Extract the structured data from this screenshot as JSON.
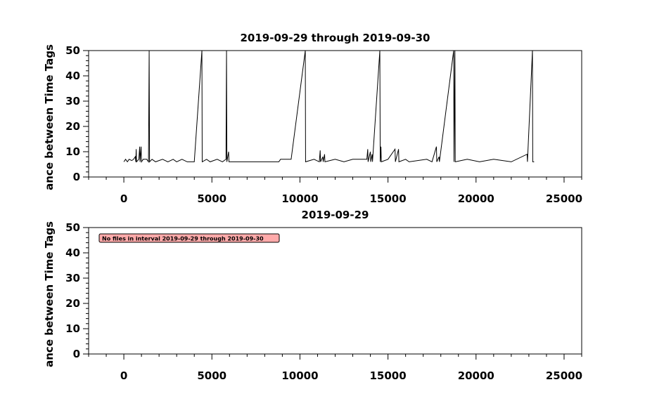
{
  "chart_data": [
    {
      "type": "line",
      "title": "2019-09-29 through 2019-09-30",
      "ylabel": "ance between Time Tags",
      "xlim": [
        -2000,
        26000
      ],
      "ylim": [
        0,
        50
      ],
      "xticks": [
        0,
        5000,
        10000,
        15000,
        20000,
        25000
      ],
      "yticks": [
        0,
        10,
        20,
        30,
        40,
        50
      ],
      "xminorticks": [
        -2000,
        -1000,
        1000,
        2000,
        3000,
        4000,
        6000,
        7000,
        8000,
        9000,
        11000,
        12000,
        13000,
        14000,
        16000,
        17000,
        18000,
        19000,
        21000,
        22000,
        23000,
        24000,
        26000
      ],
      "yminorticks": [
        2,
        4,
        6,
        8,
        12,
        14,
        16,
        18,
        22,
        24,
        26,
        28,
        32,
        34,
        36,
        38,
        42,
        44,
        46,
        48
      ],
      "color": "#000000",
      "x": [
        0,
        100,
        200,
        300,
        450,
        550,
        650,
        680,
        700,
        720,
        850,
        900,
        920,
        980,
        1000,
        1100,
        1300,
        1400,
        1438,
        1460,
        1600,
        1800,
        2200,
        2500,
        2800,
        3000,
        3300,
        3600,
        4000,
        4433,
        4450,
        4700,
        4900,
        5300,
        5600,
        5800,
        5831,
        5850,
        5950,
        5970,
        6500,
        7500,
        8800,
        8900,
        9500,
        10304,
        10320,
        10800,
        11100,
        11150,
        11170,
        11300,
        11320,
        11400,
        11420,
        12000,
        12500,
        13000,
        13800,
        13850,
        13870,
        14000,
        14020,
        14100,
        14120,
        14537,
        14560,
        14600,
        14620,
        15000,
        15400,
        15420,
        15600,
        15620,
        16000,
        16200,
        17200,
        17500,
        17750,
        17770,
        17900,
        17920,
        18730,
        18750,
        18800,
        18820,
        19500,
        20200,
        21000,
        22000,
        22900,
        22920,
        23203,
        23220,
        23300
      ],
      "values": [
        6,
        7,
        6,
        7,
        6.5,
        7,
        8,
        6,
        11,
        6,
        7,
        12,
        6,
        12,
        6,
        7,
        7,
        6,
        50,
        6,
        7,
        6,
        7,
        6,
        7,
        6,
        7,
        6,
        6,
        50,
        6,
        7,
        6,
        7,
        6,
        7,
        50,
        6,
        10,
        6,
        6,
        6,
        6,
        7,
        7,
        50,
        6,
        7,
        6,
        10.5,
        6,
        8,
        6,
        9,
        6,
        7,
        6,
        7,
        7,
        11,
        6,
        10,
        6,
        9,
        6,
        50,
        6,
        12,
        6,
        7,
        11,
        6,
        11,
        6,
        7,
        6,
        7,
        6,
        12,
        6,
        8,
        6,
        50,
        6,
        50,
        6,
        7,
        6,
        7,
        6,
        9,
        6,
        50,
        6,
        6
      ]
    },
    {
      "type": "line",
      "title": "2019-09-29",
      "ylabel": "ance between Time Tags",
      "xlim": [
        -2000,
        26000
      ],
      "ylim": [
        0,
        50
      ],
      "xticks": [
        0,
        5000,
        10000,
        15000,
        20000,
        25000
      ],
      "yticks": [
        0,
        10,
        20,
        30,
        40,
        50
      ],
      "xminorticks": [
        -2000,
        -1000,
        1000,
        2000,
        3000,
        4000,
        6000,
        7000,
        8000,
        9000,
        11000,
        12000,
        13000,
        14000,
        16000,
        17000,
        18000,
        19000,
        21000,
        22000,
        23000,
        24000,
        26000
      ],
      "yminorticks": [
        2,
        4,
        6,
        8,
        12,
        14,
        16,
        18,
        22,
        24,
        26,
        28,
        32,
        34,
        36,
        38,
        42,
        44,
        46,
        48
      ],
      "annotation": "No files in interval 2019-09-29 through 2019-09-30"
    }
  ]
}
